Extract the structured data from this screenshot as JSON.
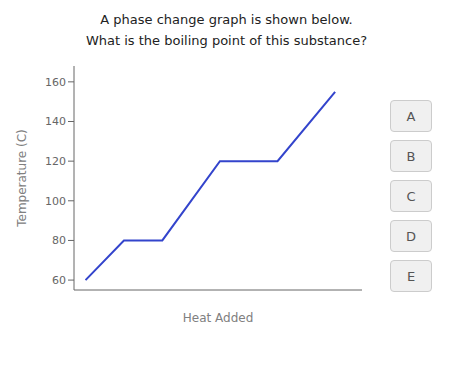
{
  "chart_data": {
    "type": "line",
    "title": "A phase change graph is shown below.",
    "subtitle": "What is the boiling point of this substance?",
    "x_label": "Heat Added",
    "y_label": "Temperature (C)",
    "x": [
      0,
      1,
      2,
      3.5,
      5,
      6.5
    ],
    "values": [
      60,
      80,
      80,
      120,
      120,
      155
    ],
    "color": "#3344cc",
    "xlim": [
      -0.3,
      7.2
    ],
    "ylim": [
      55,
      168
    ],
    "yticks": [
      60,
      80,
      100,
      120,
      140,
      160
    ],
    "grid": false,
    "tick_labels": "y",
    "annotations": [
      "A",
      "B",
      "C",
      "D",
      "E"
    ]
  }
}
